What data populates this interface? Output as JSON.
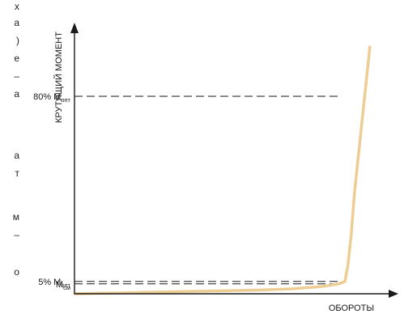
{
  "edge_fragments": [
    "х",
    "а",
    ")",
    "е",
    "–",
    "а",
    "а",
    "т",
    "м",
    "–",
    "о"
  ],
  "chart_data": {
    "type": "line",
    "title": "",
    "xlabel": "ОБОРОТЫ",
    "ylabel": "КРУТЯЩИЙ МОМЕНТ",
    "xlim": [
      0,
      100
    ],
    "ylim": [
      0,
      100
    ],
    "grid": false,
    "series": [
      {
        "x": [
          0,
          20,
          40,
          60,
          70,
          80,
          85,
          87,
          88,
          89,
          90,
          91,
          92,
          93,
          94,
          95
        ],
        "y": [
          0,
          0.5,
          1,
          1.5,
          2,
          3,
          4,
          5,
          12,
          24,
          40,
          52,
          64,
          76,
          88,
          100
        ]
      }
    ],
    "reference_lines": [
      {
        "y": 80,
        "label_main": "80% M",
        "label_sub": "опт"
      },
      {
        "y": 5,
        "label_main": "5% M",
        "label_sub": "опт"
      },
      {
        "y": 4,
        "label_main": "M",
        "label_sub": "см"
      }
    ],
    "colors": {
      "curve": "#eecd95",
      "axes": "#1a1a1a",
      "reference": "#1a1a1a"
    }
  }
}
